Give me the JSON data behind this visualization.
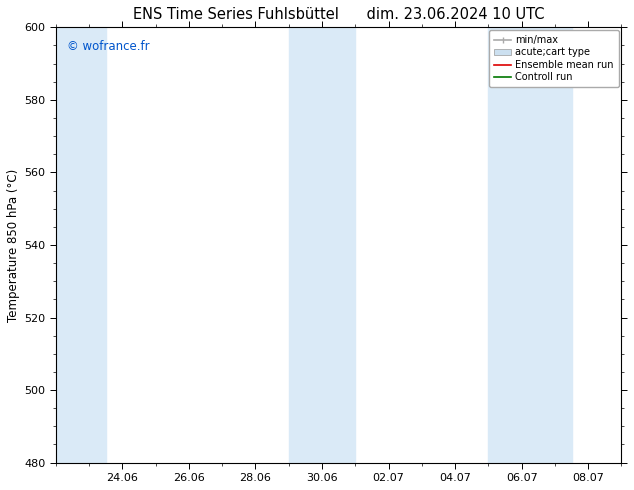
{
  "title_left": "ENS Time Series Fuhlsbüttel",
  "title_right": "dim. 23.06.2024 10 UTC",
  "ylabel": "Temperature 850 hPa (°C)",
  "watermark": "© wofrance.fr",
  "watermark_color": "#0055cc",
  "ylim": [
    480,
    600
  ],
  "yticks": [
    480,
    500,
    520,
    540,
    560,
    580,
    600
  ],
  "xtick_labels": [
    "24.06",
    "26.06",
    "28.06",
    "30.06",
    "02.07",
    "04.07",
    "06.07",
    "08.07"
  ],
  "xtick_positions": [
    2,
    4,
    6,
    8,
    10,
    12,
    14,
    16
  ],
  "xlim": [
    0,
    17
  ],
  "background_color": "#ffffff",
  "plot_bg_color": "#ffffff",
  "shaded_color": "#daeaf7",
  "shaded_regions": [
    {
      "x_start": 0.0,
      "x_end": 1.5
    },
    {
      "x_start": 7.0,
      "x_end": 9.0
    },
    {
      "x_start": 13.0,
      "x_end": 15.5
    }
  ],
  "legend_items": [
    {
      "label": "min/max",
      "color": "#aaaaaa",
      "lw": 1.2,
      "style": "minmax"
    },
    {
      "label": "acute;cart type",
      "color": "#cce0f0",
      "lw": 8,
      "style": "band"
    },
    {
      "label": "Ensemble mean run",
      "color": "#dd0000",
      "lw": 1.2,
      "style": "line"
    },
    {
      "label": "Controll run",
      "color": "#007700",
      "lw": 1.2,
      "style": "line"
    }
  ],
  "spine_color": "#000000",
  "tick_color": "#000000",
  "title_fontsize": 10.5,
  "label_fontsize": 8.5,
  "tick_fontsize": 8,
  "watermark_fontsize": 8.5,
  "legend_fontsize": 7
}
